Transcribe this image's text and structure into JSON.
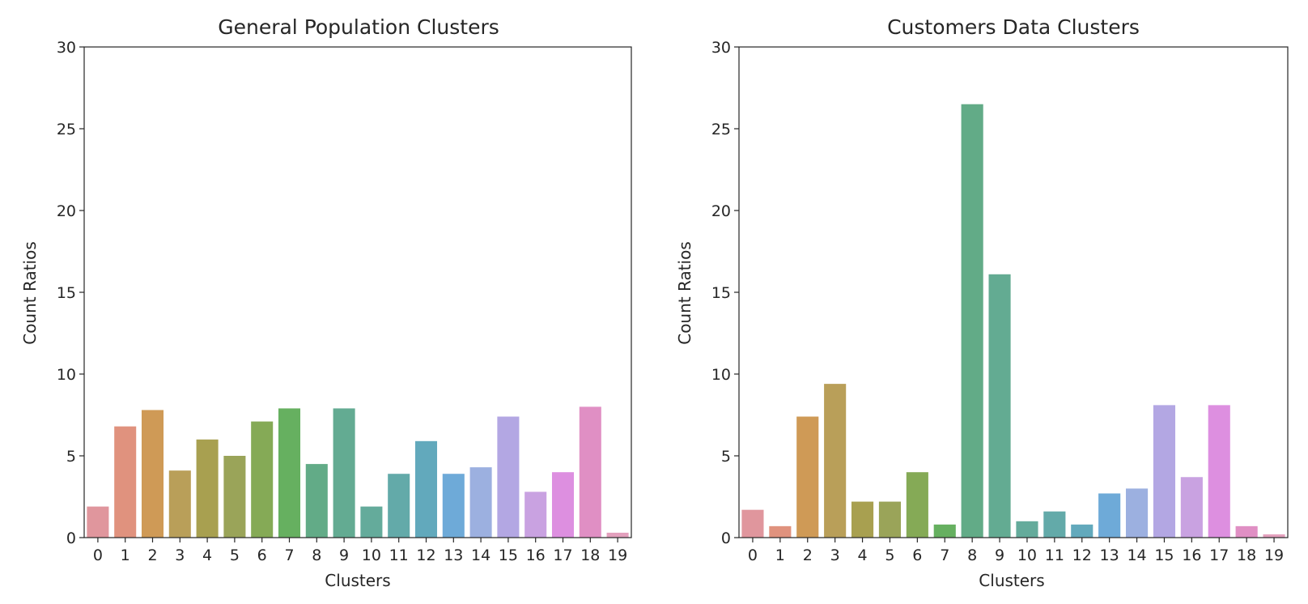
{
  "chart_data": [
    {
      "type": "bar",
      "title": "General Population Clusters",
      "xlabel": "Clusters",
      "ylabel": "Count Ratios",
      "ylim": [
        0,
        30
      ],
      "yticks": [
        "0",
        "5",
        "10",
        "15",
        "20",
        "25",
        "30"
      ],
      "categories": [
        "0",
        "1",
        "2",
        "3",
        "4",
        "5",
        "6",
        "7",
        "8",
        "9",
        "10",
        "11",
        "12",
        "13",
        "14",
        "15",
        "16",
        "17",
        "18",
        "19"
      ],
      "values": [
        1.9,
        6.8,
        7.8,
        4.1,
        6.0,
        5.0,
        7.1,
        7.9,
        4.5,
        7.9,
        1.9,
        3.9,
        5.9,
        3.9,
        4.3,
        7.4,
        2.8,
        4.0,
        8.0,
        0.3
      ],
      "grid": false
    },
    {
      "type": "bar",
      "title": "Customers Data Clusters",
      "xlabel": "Clusters",
      "ylabel": "Count Ratios",
      "ylim": [
        0,
        30
      ],
      "yticks": [
        "0",
        "5",
        "10",
        "15",
        "20",
        "25",
        "30"
      ],
      "categories": [
        "0",
        "1",
        "2",
        "3",
        "4",
        "5",
        "6",
        "7",
        "8",
        "9",
        "10",
        "11",
        "12",
        "13",
        "14",
        "15",
        "16",
        "17",
        "18",
        "19"
      ],
      "values": [
        1.7,
        0.7,
        7.4,
        9.4,
        2.2,
        2.2,
        4.0,
        0.8,
        26.5,
        16.1,
        1.0,
        1.6,
        0.8,
        2.7,
        3.0,
        8.1,
        3.7,
        8.1,
        0.7,
        0.2
      ],
      "grid": false
    }
  ],
  "palette": [
    "#e0969d",
    "#e0927e",
    "#cf9a56",
    "#b99f59",
    "#a8a050",
    "#9aa459",
    "#85aa56",
    "#66b060",
    "#62ab87",
    "#63ab92",
    "#64ab9b",
    "#63aaa9",
    "#62a9bc",
    "#6eaad8",
    "#9cb0e0",
    "#b3a7e3",
    "#c9a2e1",
    "#dd8fe0",
    "#e08fc4",
    "#e3a0bd"
  ]
}
